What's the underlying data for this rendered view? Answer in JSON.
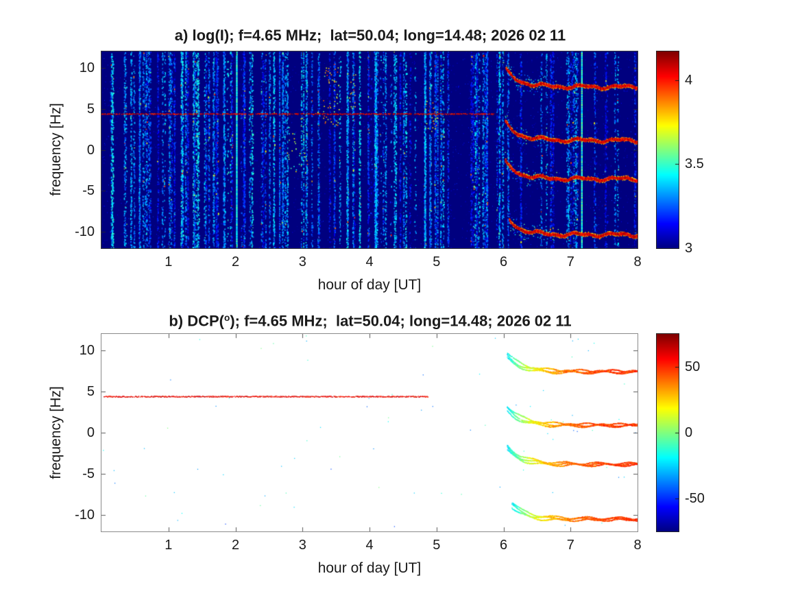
{
  "figure": {
    "background_color": "#ffffff",
    "text_color": "#1a1a1a"
  },
  "chart_data": [
    {
      "type": "heatmap",
      "panel": "a",
      "title": "a) log(I); f=4.65 MHz;  lat=50.04; long=14.48; 2026 02 11",
      "xlabel": "hour of day [UT]",
      "ylabel": "frequency [Hz]",
      "xlim": [
        0,
        8
      ],
      "ylim": [
        -12,
        12
      ],
      "xticks": [
        1,
        2,
        3,
        4,
        5,
        6,
        7,
        8
      ],
      "yticks": [
        10,
        5,
        0,
        -5,
        -10
      ],
      "colormap": "jet",
      "clim": [
        3,
        4.17
      ],
      "colorbar_ticks": [
        4,
        3.5,
        3
      ],
      "legend": "colorbar-right",
      "grid": false,
      "render": {
        "seed": 20260211,
        "background_value": 3.0,
        "speckle": {
          "count": 2600,
          "value": [
            3.02,
            3.2
          ]
        },
        "streaks": {
          "count": 150,
          "main_range": [
            0.12,
            6.28
          ],
          "late_range": [
            6.32,
            7.96
          ],
          "late_frac": 0.1,
          "base_value": [
            3.02,
            3.32
          ],
          "jitter": 0.2,
          "hot_prob": 0.02,
          "hot_value": [
            3.45,
            4.0
          ],
          "dots_min": 20,
          "dots_max": 210
        },
        "vlines": [
          {
            "h": 2.02,
            "value": [
              3.32,
              3.55
            ],
            "width": 2.2,
            "density": 1
          },
          {
            "h": 7.17,
            "value": [
              3.32,
              3.6
            ],
            "width": 2.2,
            "density": 1
          },
          {
            "h": 0.57,
            "value": [
              3.12,
              3.38
            ],
            "width": 1.6,
            "density": 0.8
          },
          {
            "h": 2.66,
            "value": [
              3.12,
              3.42
            ],
            "width": 1.6,
            "density": 0.65
          },
          {
            "h": 3.02,
            "value": [
              3.15,
              3.5
            ],
            "width": 1.6,
            "density": 0.5
          },
          {
            "h": 5.02,
            "value": [
              3.1,
              3.4
            ],
            "width": 1.5,
            "density": 0.55
          }
        ],
        "clusters": [
          {
            "h": 3.42,
            "h_spread": 0.12,
            "f_range": [
              3,
              10.5
            ],
            "n": 50,
            "value": [
              3.55,
              4.05
            ]
          },
          {
            "h": 2.9,
            "h_spread": 0.14,
            "f_range": [
              -3,
              4
            ],
            "n": 32,
            "value": [
              3.45,
              3.8
            ]
          },
          {
            "h": 4.92,
            "h_spread": 0.1,
            "f_range": [
              2,
              6.5
            ],
            "n": 24,
            "value": [
              3.6,
              4.0
            ]
          },
          {
            "h": 3.72,
            "h_spread": 0.09,
            "f_range": [
              5,
              9.5
            ],
            "n": 18,
            "value": [
              3.55,
              3.95
            ]
          }
        ],
        "hline": {
          "f": 4.42,
          "h_range": [
            0,
            5.85
          ],
          "value": [
            3.95,
            4.17
          ],
          "density": 0.6,
          "thickness": 1.4
        },
        "traces": [
          {
            "h0": 6.03,
            "f_start": 9.7,
            "f_flat": 7.68,
            "tau": 0.2
          },
          {
            "h0": 6.02,
            "f_start": 3.3,
            "f_flat": 1.15,
            "tau": 0.2
          },
          {
            "h0": 6.02,
            "f_start": -1.5,
            "f_flat": -3.55,
            "tau": 0.2
          },
          {
            "h0": 6.08,
            "f_start": -8.5,
            "f_flat": -10.35,
            "tau": 0.18
          }
        ],
        "trace_style": {
          "mode": "band",
          "step": 0.0025,
          "thickness": 3.4,
          "core_value": [
            3.95,
            4.17
          ],
          "edge_value": [
            3.72,
            3.95
          ],
          "halo_value": [
            3.08,
            3.6
          ],
          "wiggle": 0.16
        }
      }
    },
    {
      "type": "heatmap",
      "panel": "b",
      "title_prefix": "b) DCP(",
      "title_sup": "o",
      "title_suffix": "); f=4.65 MHz;  lat=50.04; long=14.48; 2026 02 11",
      "xlabel": "hour of day [UT]",
      "ylabel": "frequency [Hz]",
      "xlim": [
        0,
        8
      ],
      "ylim": [
        -12,
        12
      ],
      "xticks": [
        1,
        2,
        3,
        4,
        5,
        6,
        7,
        8
      ],
      "yticks": [
        10,
        5,
        0,
        -5,
        -10
      ],
      "colormap": "jet",
      "clim": [
        -75,
        75
      ],
      "colorbar_ticks": [
        50,
        0,
        -50
      ],
      "legend": "colorbar-right",
      "grid": false,
      "render": {
        "seed": 1448,
        "background_value": null,
        "scatter": {
          "count": 85,
          "value": [
            -48,
            0
          ],
          "size": 1.2
        },
        "hline": {
          "f": 4.42,
          "h_range": [
            0.03,
            4.87
          ],
          "value": [
            48,
            68
          ],
          "density": 0.92,
          "thickness": 1.1
        },
        "traces": [
          {
            "h0": 6.05,
            "f_start": 9.4,
            "f_flat": 7.45,
            "tau": 0.22
          },
          {
            "h0": 6.05,
            "f_start": 3.0,
            "f_flat": 0.95,
            "tau": 0.22
          },
          {
            "h0": 6.05,
            "f_start": -1.8,
            "f_flat": -3.8,
            "tau": 0.22
          },
          {
            "h0": 6.12,
            "f_start": -8.7,
            "f_flat": -10.45,
            "tau": 0.2
          }
        ],
        "trace_style": {
          "mode": "strands",
          "step": 0.003,
          "strands": 3,
          "strand_offset": 0.32,
          "dot": 1.3,
          "density": 0.82,
          "wiggle": 0.14
        },
        "value_profile": {
          "v_start": -22,
          "v_rise": 72,
          "v_tau": 0.5,
          "v_noise": 22
        }
      }
    }
  ]
}
